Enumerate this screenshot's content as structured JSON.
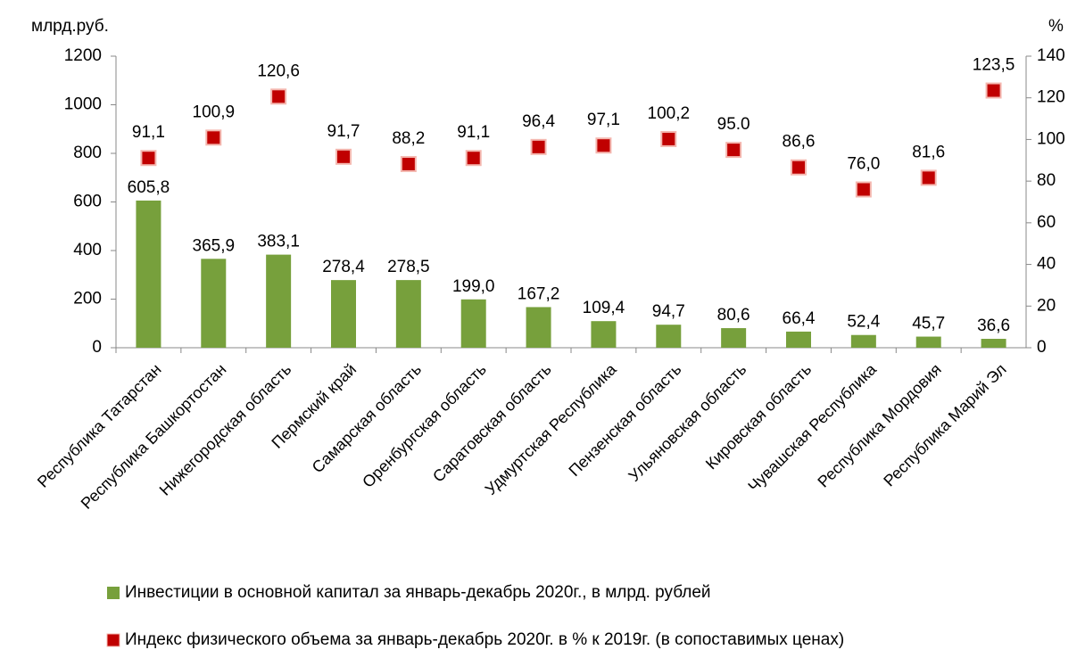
{
  "chart_data": {
    "type": "bar",
    "y_label": "млрд.руб.",
    "y2_label": "%",
    "categories": [
      "Республика Татарстан",
      "Республика Башкортостан",
      "Нижегородская область",
      "Пермский край",
      "Самарская область",
      "Оренбургская область",
      "Саратовская область",
      "Удмуртская Республика",
      "Пензенская область",
      "Ульяновская область",
      "Кировская область",
      "Чувашская Республика",
      "Республика Мордовия",
      "Республика Марий Эл"
    ],
    "series": [
      {
        "name": "Инвестиции в основной капитал за январь-декабрь 2020г., в млрд. рублей",
        "type": "bar",
        "color": "#77a03c",
        "values": [
          605.8,
          365.9,
          383.1,
          278.4,
          278.5,
          199.0,
          167.2,
          109.4,
          94.7,
          80.6,
          66.4,
          52.4,
          45.7,
          36.6
        ],
        "value_labels": [
          "605,8",
          "365,9",
          "383,1",
          "278,4",
          "278,5",
          "199,0",
          "167,2",
          "109,4",
          "94,7",
          "80,6",
          "66,4",
          "52,4",
          "45,7",
          "36,6"
        ]
      },
      {
        "name": "Индекс физического объема за январь-декабрь 2020г. в % к 2019г. (в сопоставимых ценах)",
        "type": "scatter",
        "axis": "y2",
        "color": "#c00000",
        "values": [
          91.1,
          100.9,
          120.6,
          91.7,
          88.2,
          91.1,
          96.4,
          97.1,
          100.2,
          95.0,
          86.6,
          76.0,
          81.6,
          123.5
        ],
        "value_labels": [
          "91,1",
          "100,9",
          "120,6",
          "91,7",
          "88,2",
          "91,1",
          "96,4",
          "97,1",
          "100,2",
          "95.0",
          "86,6",
          "76,0",
          "81,6",
          "123,5"
        ]
      }
    ],
    "ylim": [
      0,
      1200
    ],
    "yticks": [
      0,
      200,
      400,
      600,
      800,
      1000,
      1200
    ],
    "y2lim": [
      0,
      140
    ],
    "y2ticks": [
      0,
      20,
      40,
      60,
      80,
      100,
      120,
      140
    ]
  }
}
